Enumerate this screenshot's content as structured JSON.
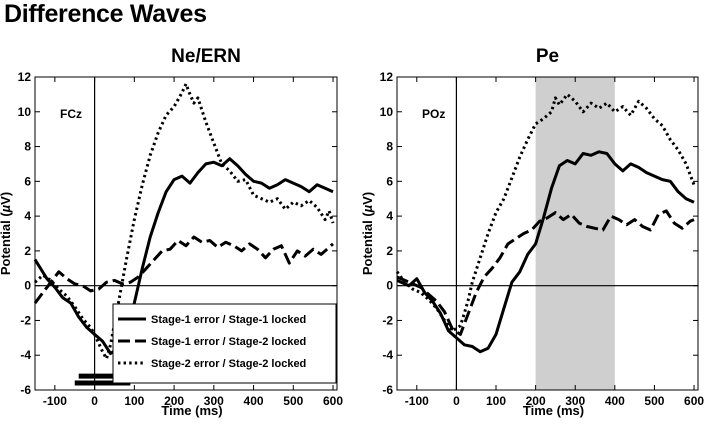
{
  "figure": {
    "title": "Difference Waves",
    "legend": [
      {
        "label": "Stage-1 error / Stage-1 locked",
        "style": "solid"
      },
      {
        "label": "Stage-1 error / Stage-2 locked",
        "style": "dashed"
      },
      {
        "label": "Stage-2 error / Stage-2 locked",
        "style": "dotted"
      }
    ]
  },
  "chart_data": [
    {
      "type": "line",
      "title": "Ne/ERN",
      "annotation": "FCz",
      "xlabel": "Time (ms)",
      "ylabel": "Potential (µV)",
      "ylabel_prefix": "Potential (",
      "ylabel_greek": "µ",
      "ylabel_suffix": "V)",
      "xlim": [
        -150,
        610
      ],
      "ylim": [
        -6,
        12
      ],
      "xticks": [
        -100,
        0,
        100,
        200,
        300,
        400,
        500,
        600
      ],
      "yticks": [
        -6,
        -4,
        -2,
        0,
        2,
        4,
        6,
        8,
        10,
        12
      ],
      "legend_position": "lower-right",
      "significance_bars": [
        {
          "x_start": -40,
          "x_end": 50,
          "y": -5.2
        },
        {
          "x_start": -50,
          "x_end": 90,
          "y": -5.6
        }
      ],
      "series": [
        {
          "name": "Stage-1 error / Stage-1 locked",
          "style": "solid",
          "x": [
            -150,
            -120,
            -100,
            -80,
            -60,
            -40,
            -20,
            0,
            20,
            40,
            60,
            80,
            100,
            120,
            140,
            160,
            180,
            200,
            220,
            240,
            260,
            280,
            300,
            320,
            340,
            360,
            380,
            400,
            420,
            440,
            460,
            480,
            500,
            520,
            540,
            560,
            580,
            600
          ],
          "y": [
            1.5,
            0.4,
            -0.1,
            -0.7,
            -1.0,
            -1.8,
            -2.4,
            -2.8,
            -3.2,
            -3.9,
            -3.6,
            -2.6,
            -1.0,
            1.0,
            2.8,
            4.2,
            5.4,
            6.1,
            6.3,
            5.9,
            6.5,
            7.0,
            7.1,
            6.9,
            7.3,
            6.9,
            6.4,
            6.0,
            5.9,
            5.6,
            5.8,
            6.1,
            5.9,
            5.7,
            5.4,
            5.8,
            5.6,
            5.4
          ]
        },
        {
          "name": "Stage-1 error / Stage-2 locked",
          "style": "dashed",
          "x": [
            -150,
            -130,
            -110,
            -90,
            -70,
            -50,
            -30,
            -10,
            10,
            30,
            50,
            70,
            90,
            110,
            130,
            150,
            170,
            190,
            210,
            230,
            250,
            270,
            290,
            310,
            330,
            350,
            370,
            390,
            410,
            430,
            450,
            470,
            490,
            510,
            530,
            550,
            570,
            590,
            600
          ],
          "y": [
            -1.0,
            -0.4,
            0.2,
            0.8,
            0.4,
            0.1,
            0.0,
            -0.3,
            -0.2,
            0.2,
            0.3,
            0.1,
            0.2,
            0.5,
            1.0,
            1.5,
            2.0,
            2.1,
            2.6,
            2.3,
            2.8,
            2.5,
            2.6,
            2.2,
            2.5,
            2.3,
            2.0,
            2.4,
            2.1,
            1.6,
            2.1,
            2.3,
            1.3,
            2.0,
            1.7,
            2.1,
            1.8,
            2.2,
            2.4
          ]
        },
        {
          "name": "Stage-2 error / Stage-2 locked",
          "style": "dotted",
          "x": [
            -150,
            -130,
            -110,
            -90,
            -70,
            -50,
            -30,
            -10,
            0,
            10,
            20,
            30,
            40,
            60,
            80,
            100,
            120,
            140,
            160,
            180,
            200,
            220,
            230,
            240,
            250,
            260,
            280,
            300,
            320,
            340,
            360,
            380,
            400,
            420,
            440,
            460,
            480,
            500,
            520,
            540,
            560,
            580,
            590,
            600
          ],
          "y": [
            0.2,
            0.6,
            0.3,
            -0.2,
            -0.6,
            -1.2,
            -1.9,
            -2.4,
            -2.8,
            -3.3,
            -3.8,
            -4.2,
            -3.4,
            -1.0,
            1.5,
            3.8,
            5.8,
            7.5,
            8.8,
            9.8,
            10.3,
            11.1,
            11.6,
            11.0,
            10.5,
            10.8,
            9.4,
            8.2,
            7.0,
            6.6,
            6.0,
            6.1,
            5.2,
            5.0,
            4.8,
            5.0,
            4.4,
            4.8,
            4.6,
            4.9,
            4.5,
            3.8,
            4.3,
            3.6
          ]
        }
      ]
    },
    {
      "type": "line",
      "title": "Pe",
      "annotation": "POz",
      "xlabel": "Time (ms)",
      "ylabel": "Potential (µV)",
      "ylabel_prefix": "Potential (",
      "ylabel_greek": "µ",
      "ylabel_suffix": "V)",
      "xlim": [
        -150,
        610
      ],
      "ylim": [
        -6,
        12
      ],
      "xticks": [
        -100,
        0,
        100,
        200,
        300,
        400,
        500,
        600
      ],
      "yticks": [
        -6,
        -4,
        -2,
        0,
        2,
        4,
        6,
        8,
        10,
        12
      ],
      "shaded_region": [
        200,
        400
      ],
      "series": [
        {
          "name": "Stage-1 error / Stage-1 locked",
          "style": "solid",
          "x": [
            -150,
            -120,
            -100,
            -80,
            -60,
            -40,
            -20,
            0,
            20,
            40,
            60,
            80,
            100,
            120,
            140,
            160,
            180,
            200,
            220,
            240,
            260,
            280,
            300,
            320,
            340,
            360,
            380,
            400,
            420,
            440,
            460,
            480,
            500,
            520,
            540,
            560,
            580,
            600
          ],
          "y": [
            0.3,
            0.0,
            0.4,
            -0.4,
            -0.9,
            -1.6,
            -2.6,
            -3.0,
            -3.4,
            -3.5,
            -3.8,
            -3.6,
            -2.8,
            -1.3,
            0.2,
            0.8,
            1.8,
            2.4,
            3.9,
            5.6,
            6.9,
            7.2,
            7.0,
            7.6,
            7.5,
            7.7,
            7.6,
            7.0,
            6.6,
            7.0,
            6.8,
            6.5,
            6.3,
            6.1,
            6.0,
            5.4,
            5.0,
            4.8
          ]
        },
        {
          "name": "Stage-1 error / Stage-2 locked",
          "style": "dashed",
          "x": [
            -150,
            -130,
            -110,
            -90,
            -70,
            -50,
            -30,
            -10,
            10,
            30,
            50,
            70,
            90,
            110,
            130,
            150,
            170,
            190,
            210,
            230,
            250,
            270,
            290,
            310,
            330,
            350,
            370,
            390,
            410,
            430,
            450,
            470,
            490,
            510,
            530,
            550,
            570,
            590,
            600
          ],
          "y": [
            0.5,
            0.3,
            0.1,
            -0.1,
            -0.5,
            -0.9,
            -1.5,
            -2.5,
            -2.8,
            -1.6,
            -0.4,
            0.5,
            1.0,
            1.6,
            2.4,
            2.7,
            3.0,
            3.2,
            3.7,
            3.9,
            4.2,
            3.8,
            4.1,
            3.6,
            3.4,
            3.3,
            3.2,
            4.0,
            3.8,
            3.5,
            3.8,
            3.4,
            3.2,
            4.1,
            4.3,
            3.6,
            3.3,
            3.7,
            3.8
          ]
        },
        {
          "name": "Stage-2 error / Stage-2 locked",
          "style": "dotted",
          "x": [
            -150,
            -130,
            -110,
            -90,
            -70,
            -50,
            -30,
            -10,
            10,
            20,
            30,
            40,
            60,
            80,
            100,
            120,
            140,
            160,
            180,
            200,
            220,
            240,
            250,
            260,
            280,
            300,
            320,
            340,
            360,
            380,
            400,
            420,
            440,
            460,
            480,
            500,
            520,
            540,
            560,
            580,
            600
          ],
          "y": [
            0.8,
            0.2,
            -0.2,
            -0.4,
            -0.8,
            -1.3,
            -2.0,
            -2.6,
            -2.3,
            -1.6,
            -0.8,
            0.2,
            1.6,
            3.0,
            4.2,
            5.0,
            6.2,
            7.4,
            8.4,
            9.3,
            9.6,
            10.0,
            10.8,
            10.4,
            11.0,
            10.6,
            10.0,
            10.5,
            10.2,
            10.5,
            10.0,
            10.3,
            9.8,
            10.6,
            10.2,
            9.6,
            9.2,
            8.4,
            7.8,
            7.0,
            5.8
          ]
        }
      ]
    }
  ]
}
